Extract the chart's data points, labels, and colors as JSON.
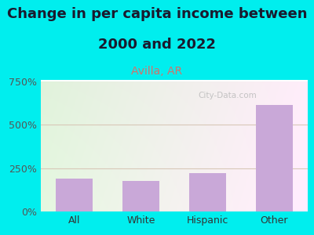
{
  "categories": [
    "All",
    "White",
    "Hispanic",
    "Other"
  ],
  "values": [
    190,
    178,
    222,
    615
  ],
  "bar_color": "#C9A8D8",
  "title_line1": "Change in per capita income between",
  "title_line2": "2000 and 2022",
  "subtitle": "Avilla, AR",
  "subtitle_color": "#D4726A",
  "title_color": "#1A1A2E",
  "background_color": "#00EEEE",
  "ylim": [
    0,
    750
  ],
  "yticks": [
    0,
    250,
    500,
    750
  ],
  "ytick_labels": [
    "0%",
    "250%",
    "500%",
    "750%"
  ],
  "grid_color": "#D8C8B8",
  "watermark": "City-Data.com",
  "title_fontsize": 13,
  "subtitle_fontsize": 10,
  "tick_fontsize": 9,
  "xtick_fontsize": 9
}
